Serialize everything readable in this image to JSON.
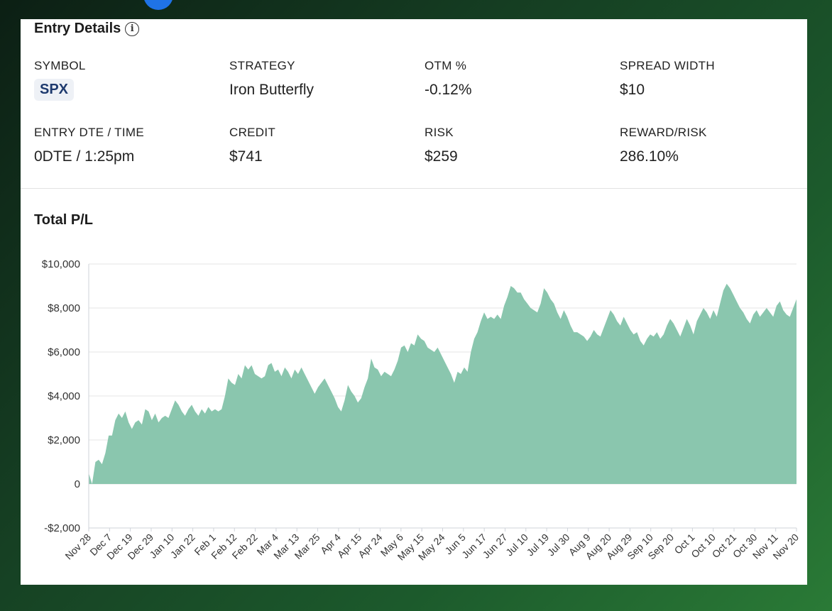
{
  "entry": {
    "title": "Entry Details",
    "info_icon": "i",
    "fields": [
      {
        "label": "SYMBOL",
        "value": "SPX"
      },
      {
        "label": "STRATEGY",
        "value": "Iron Butterfly"
      },
      {
        "label": "OTM %",
        "value": "-0.12%"
      },
      {
        "label": "SPREAD WIDTH",
        "value": "$10"
      },
      {
        "label": "ENTRY DTE / TIME",
        "value": "0DTE / 1:25pm"
      },
      {
        "label": "CREDIT",
        "value": "$741"
      },
      {
        "label": "RISK",
        "value": "$259"
      },
      {
        "label": "REWARD/RISK",
        "value": "286.10%"
      }
    ]
  },
  "chart_title": "Total P/L",
  "colors": {
    "area": "#8ac6ae",
    "grid": "#e6e6e6",
    "axis": "#cfd3da",
    "text": "#333333"
  },
  "chart_data": {
    "type": "area",
    "title": "Total P/L",
    "ylim": [
      -2000,
      10000
    ],
    "ytick_values": [
      -2000,
      0,
      2000,
      4000,
      6000,
      8000,
      10000
    ],
    "ytick_labels": [
      "-$2,000",
      "0",
      "$2,000",
      "$4,000",
      "$6,000",
      "$8,000",
      "$10,000"
    ],
    "grid": true,
    "xticks": [
      "Nov 28",
      "Dec 7",
      "Dec 19",
      "Dec 29",
      "Jan 10",
      "Jan 22",
      "Feb 1",
      "Feb 12",
      "Feb 22",
      "Mar 4",
      "Mar 13",
      "Mar 25",
      "Apr 4",
      "Apr 15",
      "Apr 24",
      "May 6",
      "May 15",
      "May 24",
      "Jun 5",
      "Jun 17",
      "Jun 27",
      "Jul 10",
      "Jul 19",
      "Jul 30",
      "Aug 9",
      "Aug 20",
      "Aug 29",
      "Sep 10",
      "Sep 20",
      "Oct 1",
      "Oct 10",
      "Oct 21",
      "Oct 30",
      "Nov 11",
      "Nov 20"
    ],
    "series": [
      {
        "values": [
          500,
          0,
          1000,
          1100,
          900,
          1400,
          2200,
          2200,
          2900,
          3200,
          3000,
          3300,
          2800,
          2500,
          2800,
          2900,
          2700,
          3400,
          3300,
          2900,
          3200,
          2800,
          3000,
          3100,
          3000,
          3400,
          3800,
          3600,
          3300,
          3100,
          3400,
          3600,
          3300,
          3100,
          3400,
          3200,
          3500,
          3300,
          3400,
          3300,
          3400,
          4000,
          4800,
          4600,
          4500,
          5000,
          4800,
          5400,
          5200,
          5400,
          5000,
          4900,
          4800,
          4900,
          5400,
          5500,
          5100,
          5200,
          4900,
          5300,
          5100,
          4800,
          5200,
          5000,
          5300,
          5000,
          4700,
          4400,
          4100,
          4400,
          4600,
          4800,
          4500,
          4200,
          3900,
          3500,
          3300,
          3800,
          4500,
          4200,
          4000,
          3700,
          3900,
          4400,
          4800,
          5700,
          5300,
          5200,
          4900,
          5100,
          5000,
          4900,
          5200,
          5600,
          6200,
          6300,
          6000,
          6400,
          6300,
          6800,
          6600,
          6500,
          6200,
          6100,
          6000,
          6200,
          5900,
          5600,
          5300,
          5000,
          4600,
          5100,
          5000,
          5300,
          5100,
          6000,
          6600,
          6900,
          7400,
          7800,
          7500,
          7600,
          7500,
          7700,
          7500,
          8100,
          8500,
          9000,
          8900,
          8700,
          8700,
          8400,
          8200,
          8000,
          7900,
          7800,
          8200,
          8900,
          8700,
          8400,
          8200,
          7800,
          7500,
          7900,
          7600,
          7200,
          6900,
          6900,
          6800,
          6700,
          6500,
          6700,
          7000,
          6800,
          6700,
          7100,
          7500,
          7900,
          7700,
          7400,
          7200,
          7600,
          7300,
          7000,
          6800,
          6900,
          6500,
          6300,
          6600,
          6800,
          6700,
          6900,
          6600,
          6800,
          7200,
          7500,
          7300,
          7000,
          6700,
          7100,
          7500,
          7200,
          6800,
          7400,
          7700,
          8000,
          7800,
          7500,
          7900,
          7600,
          8200,
          8800,
          9100,
          8900,
          8600,
          8300,
          8000,
          7800,
          7500,
          7300,
          7700,
          7900,
          7600,
          7800,
          8000,
          7800,
          7600,
          8100,
          8300,
          7900,
          7700,
          7600,
          8000,
          8400
        ]
      }
    ]
  }
}
